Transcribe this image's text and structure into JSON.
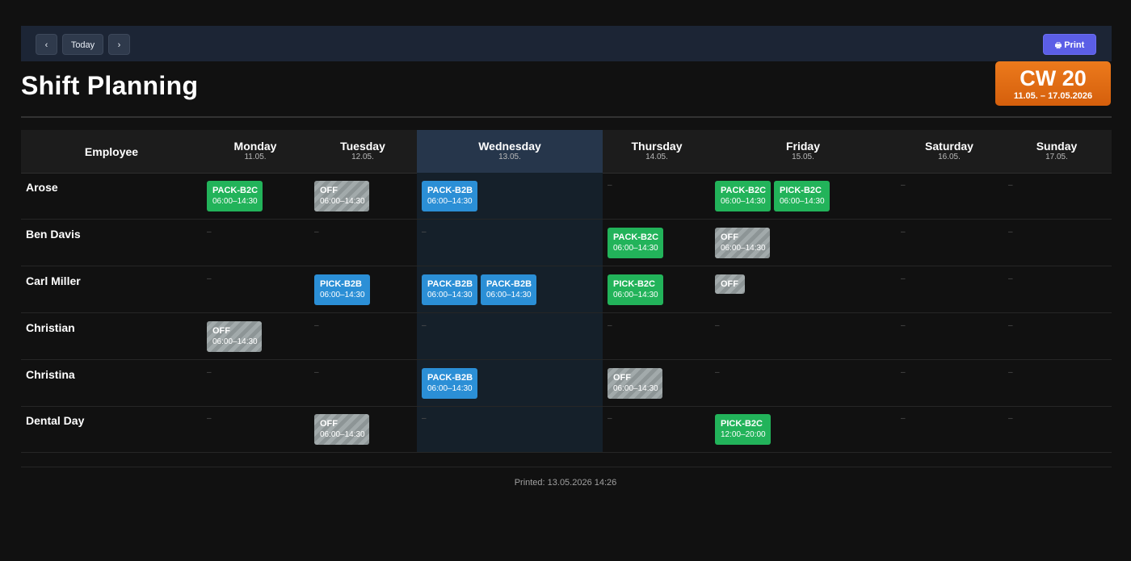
{
  "toolbar": {
    "prev_label": "‹",
    "today_label": "Today",
    "next_label": "›",
    "print_label": "Print"
  },
  "page_title": "Shift Planning",
  "week": {
    "label": "CW 20",
    "range": "11.05. – 17.05.2026"
  },
  "table": {
    "employee_header": "Employee",
    "days": [
      {
        "name": "Monday",
        "date": "11.05."
      },
      {
        "name": "Tuesday",
        "date": "12.05."
      },
      {
        "name": "Wednesday",
        "date": "13.05."
      },
      {
        "name": "Thursday",
        "date": "14.05."
      },
      {
        "name": "Friday",
        "date": "15.05."
      },
      {
        "name": "Saturday",
        "date": "16.05."
      },
      {
        "name": "Sunday",
        "date": "17.05."
      }
    ],
    "empty_marker": "–",
    "rows": [
      {
        "employee": "Arose",
        "cells": [
          [
            {
              "code": "PACK-B2C",
              "time": "06:00–14:30",
              "color": "green"
            }
          ],
          [
            {
              "code": "OFF",
              "time": "06:00–14:30",
              "color": "off"
            }
          ],
          [
            {
              "code": "PACK-B2B",
              "time": "06:00–14:30",
              "color": "blue"
            }
          ],
          [],
          [
            {
              "code": "PACK-B2C",
              "time": "06:00–14:30",
              "color": "green"
            },
            {
              "code": "PICK-B2C",
              "time": "06:00–14:30",
              "color": "green"
            }
          ],
          [],
          []
        ]
      },
      {
        "employee": "Ben Davis",
        "cells": [
          [],
          [],
          [],
          [
            {
              "code": "PACK-B2C",
              "time": "06:00–14:30",
              "color": "green"
            }
          ],
          [
            {
              "code": "OFF",
              "time": "06:00–14:30",
              "color": "off"
            }
          ],
          [],
          []
        ]
      },
      {
        "employee": "Carl Miller",
        "cells": [
          [],
          [
            {
              "code": "PICK-B2B",
              "time": "06:00–14:30",
              "color": "blue"
            }
          ],
          [
            {
              "code": "PACK-B2B",
              "time": "06:00–14:30",
              "color": "blue"
            },
            {
              "code": "PACK-B2B",
              "time": "06:00–14:30",
              "color": "blue"
            }
          ],
          [
            {
              "code": "PICK-B2C",
              "time": "06:00–14:30",
              "color": "green"
            }
          ],
          [
            {
              "code": "OFF",
              "time": "",
              "color": "off"
            }
          ],
          [],
          []
        ]
      },
      {
        "employee": "Christian",
        "cells": [
          [
            {
              "code": "OFF",
              "time": "06:00–14:30",
              "color": "off"
            }
          ],
          [],
          [],
          [],
          [],
          [],
          []
        ]
      },
      {
        "employee": "Christina",
        "cells": [
          [],
          [],
          [
            {
              "code": "PACK-B2B",
              "time": "06:00–14:30",
              "color": "blue"
            }
          ],
          [
            {
              "code": "OFF",
              "time": "06:00–14:30",
              "color": "off"
            }
          ],
          [],
          [],
          []
        ]
      },
      {
        "employee": "Dental Day",
        "cells": [
          [],
          [
            {
              "code": "OFF",
              "time": "06:00–14:30",
              "color": "off"
            }
          ],
          [],
          [],
          [
            {
              "code": "PICK-B2C",
              "time": "12:00–20:00",
              "color": "green"
            }
          ],
          [],
          []
        ]
      }
    ]
  },
  "footer": {
    "printed": "Printed: 13.05.2026 14:26"
  }
}
